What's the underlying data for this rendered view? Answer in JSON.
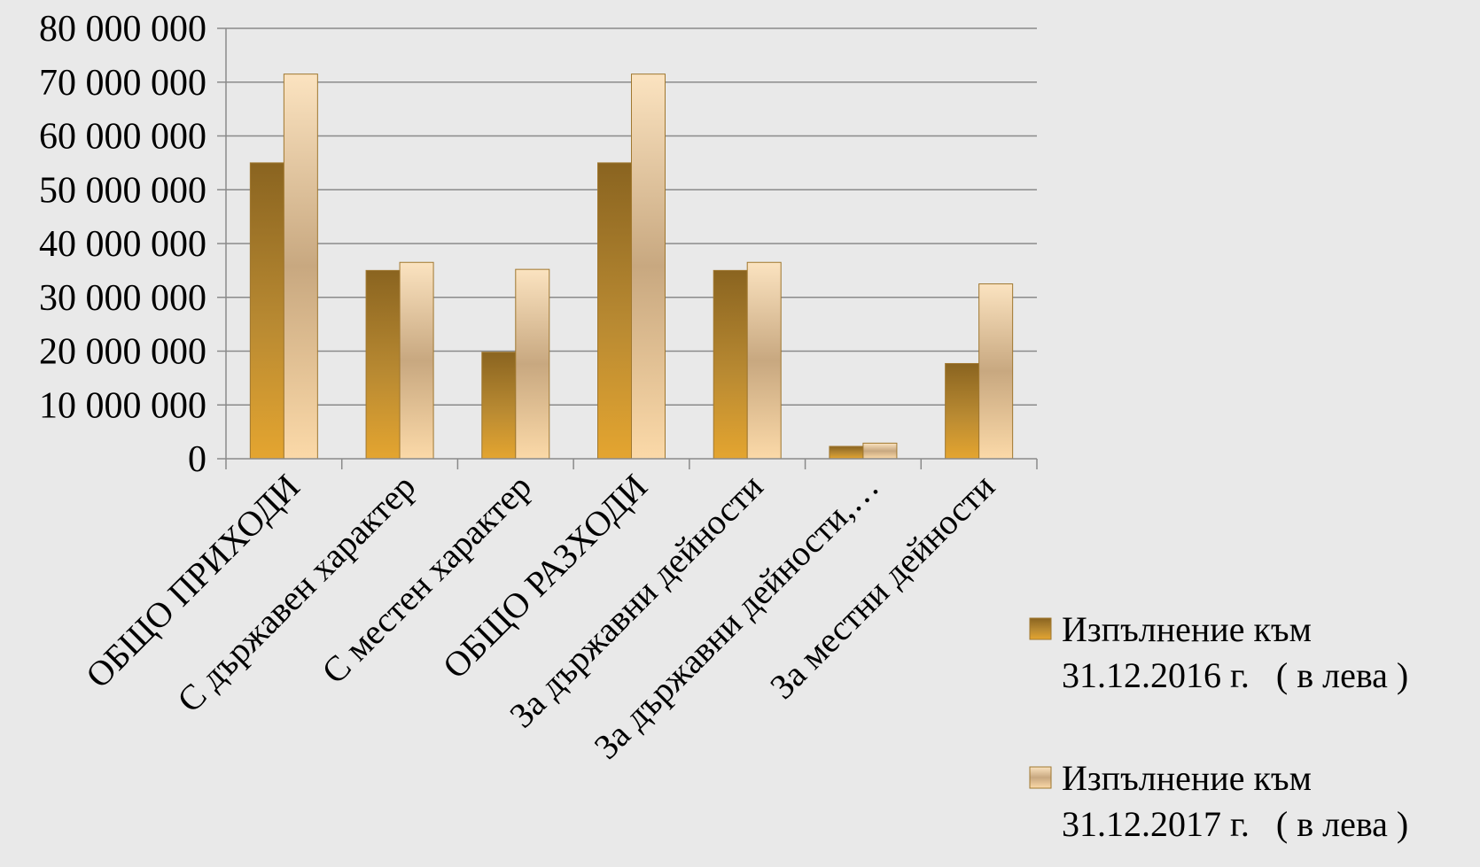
{
  "chart_data": {
    "type": "bar",
    "title": "",
    "xlabel": "",
    "ylabel": "",
    "ylim": [
      0,
      80000000
    ],
    "yticks": [
      "0",
      "10 000 000",
      "20 000 000",
      "30 000 000",
      "40 000 000",
      "50 000 000",
      "60 000 000",
      "70 000 000",
      "80 000 000"
    ],
    "ytick_values": [
      0,
      10000000,
      20000000,
      30000000,
      40000000,
      50000000,
      60000000,
      70000000,
      80000000
    ],
    "grid": true,
    "legend_position": "bottom-right",
    "categories": [
      "ОБЩО ПРИХОДИ",
      "С държавен характер",
      "С местен характер",
      "ОБЩО РАЗХОДИ",
      "За държавни дейности",
      "За държавни дейности,…",
      "За местни дейности"
    ],
    "series": [
      {
        "name": "Изпълнение към 31.12.2016 г. ( в лева )",
        "legend_lines": [
          "Изпълнение към",
          "31.12.2016 г.   ( в лева )"
        ],
        "color_top": "#8a6420",
        "color_mid": "#b98a32",
        "color_bottom": "#e4a530",
        "values": [
          55000000,
          35000000,
          19800000,
          55000000,
          35000000,
          2300000,
          17700000
        ]
      },
      {
        "name": "Изпълнение към 31.12.2017 г. ( в лева )",
        "legend_lines": [
          "Изпълнение към",
          "31.12.2017 г.   ( в лева )"
        ],
        "color_top": "#fbe3c0",
        "color_mid": "#c8a880",
        "color_bottom": "#fbd9a8",
        "values": [
          71500000,
          36500000,
          35200000,
          71500000,
          36500000,
          2900000,
          32500000
        ]
      }
    ]
  }
}
